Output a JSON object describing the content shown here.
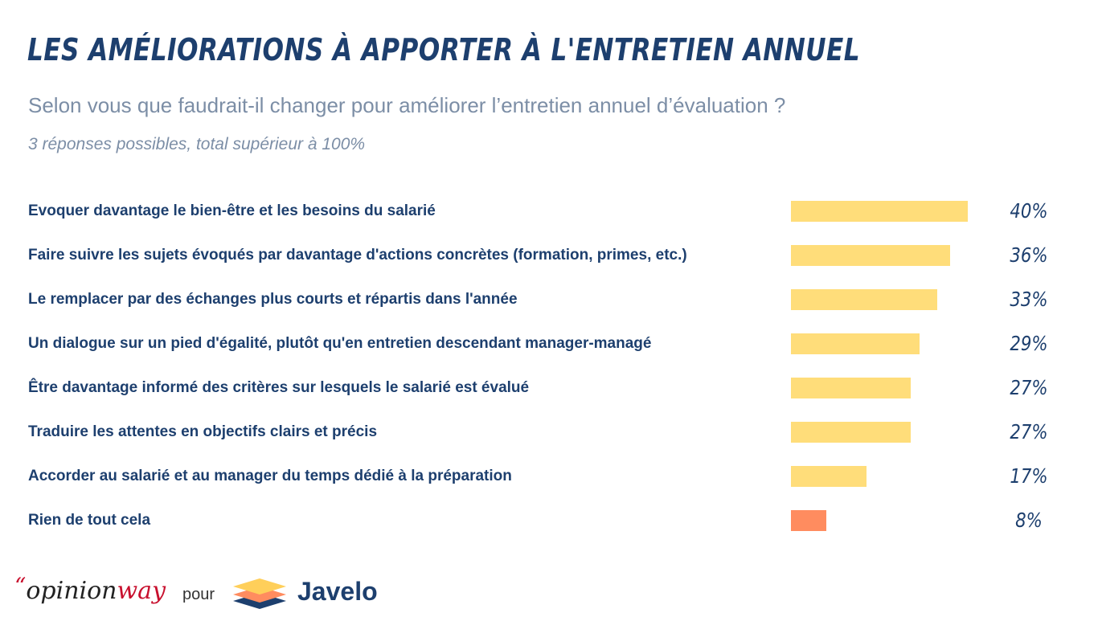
{
  "header": {
    "title": "LES AMÉLIORATIONS À APPORTER À L'ENTRETIEN ANNUEL",
    "subtitle": "Selon vous que faudrait-il changer pour améliorer l’entretien annuel d’évaluation ?",
    "note": "3 réponses possibles, total supérieur à 100%"
  },
  "chart_data": {
    "type": "bar",
    "orientation": "horizontal",
    "categories": [
      "Evoquer davantage le bien-être et les besoins du salarié",
      "Faire suivre les sujets évoqués par davantage d'actions concrètes (formation, primes, etc.)",
      "Le remplacer par des échanges plus courts et répartis dans l'année",
      "Un dialogue sur un pied d'égalité, plutôt qu'en entretien descendant manager-managé",
      "Être davantage informé des critères sur lesquels le salarié est évalué",
      "Traduire les attentes en objectifs clairs et précis",
      "Accorder au salarié et au manager du temps dédié à la préparation",
      "Rien de tout cela"
    ],
    "values": [
      40,
      36,
      33,
      29,
      27,
      27,
      17,
      8
    ],
    "value_labels": [
      "40%",
      "36%",
      "33%",
      "29%",
      "27%",
      "27%",
      "17%",
      "8%"
    ],
    "colors": [
      "#ffdd7a",
      "#ffdd7a",
      "#ffdd7a",
      "#ffdd7a",
      "#ffdd7a",
      "#ffdd7a",
      "#ffdd7a",
      "#ff8c5f"
    ],
    "xlim": [
      0,
      40
    ],
    "grid": false,
    "legend": false
  },
  "footer": {
    "source_quote": "“",
    "source_part1": "opinion",
    "source_part2": "way",
    "connector": "pour",
    "brand": "Javelo",
    "brand_icon": "stacked-layers-icon",
    "brand_colors": [
      "#ffcf5a",
      "#ff8c5f",
      "#1d3f6e"
    ]
  }
}
